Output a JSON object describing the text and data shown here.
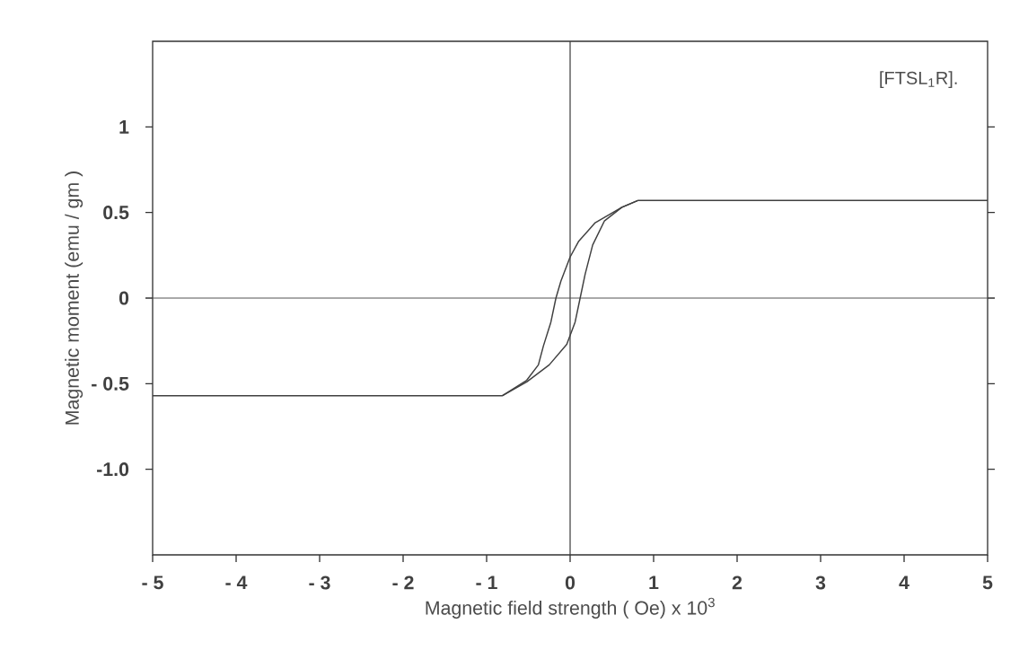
{
  "chart_data": {
    "type": "line",
    "xlabel": "Magnetic field strength ( Oe) x 10$^{3}$",
    "ylabel": "Magnetic moment (emu / gm )",
    "annotations": [
      "[FTSL$_{1}$R]."
    ],
    "xlim": [
      -5,
      5
    ],
    "ylim": [
      -1.5,
      1.5
    ],
    "xticks": [
      {
        "value": -5,
        "label": "- 5"
      },
      {
        "value": -4,
        "label": "- 4"
      },
      {
        "value": -3,
        "label": "- 3"
      },
      {
        "value": -2,
        "label": "- 2"
      },
      {
        "value": -1,
        "label": "- 1"
      },
      0,
      1,
      2,
      3,
      4,
      5
    ],
    "yticks": [
      {
        "value": -1,
        "label": "-1.0"
      },
      {
        "value": -0.5,
        "label": "- 0.5"
      },
      0,
      0.5,
      1
    ],
    "ref_lines": [
      {
        "axis": "x",
        "value": 0,
        "color": "#3a3a3a"
      },
      {
        "axis": "y",
        "value": 0,
        "color": "#555555"
      }
    ],
    "series": [
      {
        "color": "#404040",
        "x": [
          5,
          0.81,
          0.62,
          0.3,
          0.1,
          0,
          -0.11,
          -0.17,
          -0.23,
          -0.32,
          -0.38,
          -0.52,
          -0.81,
          -5
        ],
        "values": [
          0.57,
          0.57,
          0.53,
          0.44,
          0.33,
          0.24,
          0.1,
          0,
          -0.14,
          -0.28,
          -0.39,
          -0.48,
          -0.57,
          -0.57
        ]
      },
      {
        "color": "#404040",
        "x": [
          -0.81,
          -0.52,
          -0.25,
          -0.04,
          0.06,
          0.12,
          0.18,
          0.27,
          0.41,
          0.62,
          0.81
        ],
        "values": [
          -0.57,
          -0.49,
          -0.39,
          -0.27,
          -0.14,
          0,
          0.14,
          0.31,
          0.45,
          0.53,
          0.57
        ]
      }
    ]
  }
}
